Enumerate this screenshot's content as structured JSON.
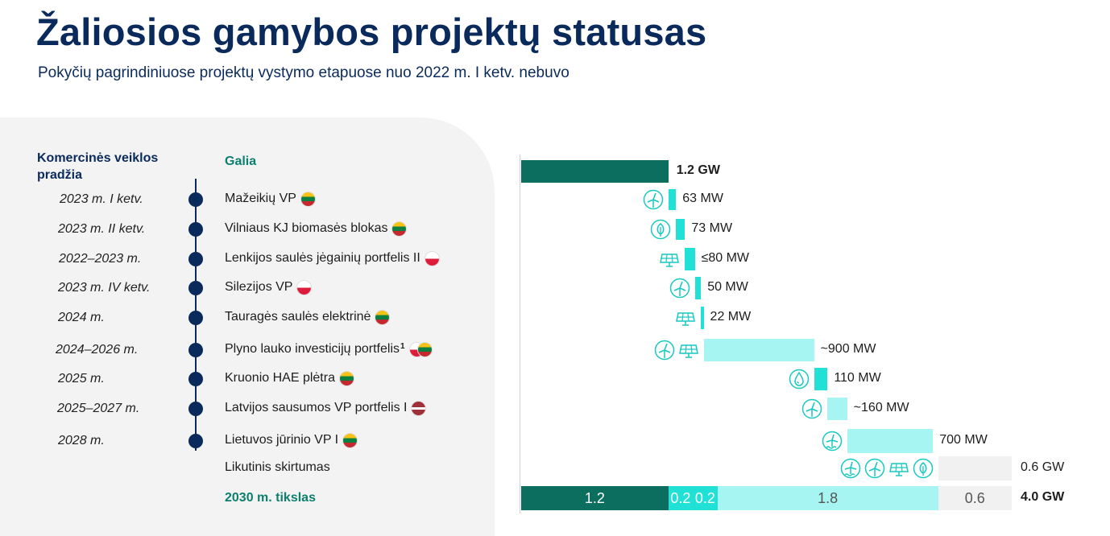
{
  "title": "Žaliosios gamybos projektų statusas",
  "subtitle": "Pokyčių pagrindiniuose projektų vystymo etapuose nuo 2022 m. I ketv. nebuvo",
  "headers": {
    "date": "Komercinės veiklos pradžia",
    "power": "Galia"
  },
  "colors": {
    "dark": "#0b6e5f",
    "cyan": "#21e0d6",
    "light_cyan": "#a6f5f2",
    "grey": "#f1f1f1",
    "navy": "#0a2a5c"
  },
  "projects": [
    {
      "date": "2023 m. I ketv.",
      "name": "Mažeikių  VP",
      "flags": [
        "lt"
      ],
      "icons": [
        "wind-icon"
      ],
      "value_label": "63 MW",
      "value_mw": 63
    },
    {
      "date": "2023 m. II ketv.",
      "name": "Vilniaus KJ biomasės blokas",
      "flags": [
        "lt"
      ],
      "icons": [
        "biomass-icon"
      ],
      "value_label": "73 MW",
      "value_mw": 73
    },
    {
      "date": "2022–2023 m.",
      "name": "Lenkijos saulės jėgainių portfelis II",
      "flags": [
        "pl"
      ],
      "icons": [
        "solar-icon"
      ],
      "value_label": "≤80 MW",
      "value_mw": 80
    },
    {
      "date": "2023 m. IV ketv.",
      "name": "Silezijos VP",
      "flags": [
        "pl"
      ],
      "icons": [
        "wind-icon"
      ],
      "value_label": "50 MW",
      "value_mw": 50
    },
    {
      "date": "2024 m.",
      "name": "Tauragės saulės elektrinė",
      "flags": [
        "lt"
      ],
      "icons": [
        "solar-icon"
      ],
      "value_label": "22 MW",
      "value_mw": 22
    },
    {
      "date": "2024–2026 m.",
      "name": "Plyno lauko investicijų portfelis",
      "footnote": "1",
      "flags": [
        "pl",
        "lt"
      ],
      "icons": [
        "wind-icon",
        "solar-icon"
      ],
      "value_label": "~900 MW",
      "value_mw": 900
    },
    {
      "date": "2025 m.",
      "name": "Kruonio HAE plėtra",
      "flags": [
        "lt"
      ],
      "icons": [
        "hydro-icon"
      ],
      "value_label": "110 MW",
      "value_mw": 110
    },
    {
      "date": "2025–2027 m.",
      "name": "Latvijos sausumos VP portfelis I",
      "flags": [
        "lv"
      ],
      "icons": [
        "wind-icon"
      ],
      "value_label": "~160 MW",
      "value_mw": 160
    },
    {
      "date": "2028 m.",
      "name": "Lietuvos jūrinio VP I",
      "flags": [
        "lt"
      ],
      "icons": [
        "offshore-wind-icon"
      ],
      "value_label": "700 MW",
      "value_mw": 700
    }
  ],
  "remaining": {
    "label": "Likutinis skirtumas",
    "icons": [
      "offshore-wind-icon",
      "wind-icon",
      "solar-icon",
      "biomass-icon"
    ],
    "value_label": "0.6 GW",
    "value_gw": 0.6
  },
  "target": {
    "label": "2030 m. tikslas",
    "value_label": "4.0 GW",
    "value_gw": 4.0
  },
  "chart_data": {
    "type": "bar",
    "subtype": "waterfall",
    "start": {
      "label": "1.2 GW",
      "value_gw": 1.2
    },
    "steps_mw": [
      63,
      73,
      80,
      50,
      22,
      900,
      110,
      160,
      700
    ],
    "remaining_gw": 0.6,
    "total": {
      "label": "4.0 GW",
      "value_gw": 4.0
    },
    "total_segments": [
      {
        "label": "1.2",
        "value": 1.2,
        "color": "dark"
      },
      {
        "label": "0.2",
        "value": 0.2,
        "color": "cyan"
      },
      {
        "label": "0.2",
        "value": 0.2,
        "color": "cyan"
      },
      {
        "label": "1.8",
        "value": 1.8,
        "color": "light_cyan"
      },
      {
        "label": "0.6",
        "value": 0.6,
        "color": "grey"
      }
    ]
  }
}
